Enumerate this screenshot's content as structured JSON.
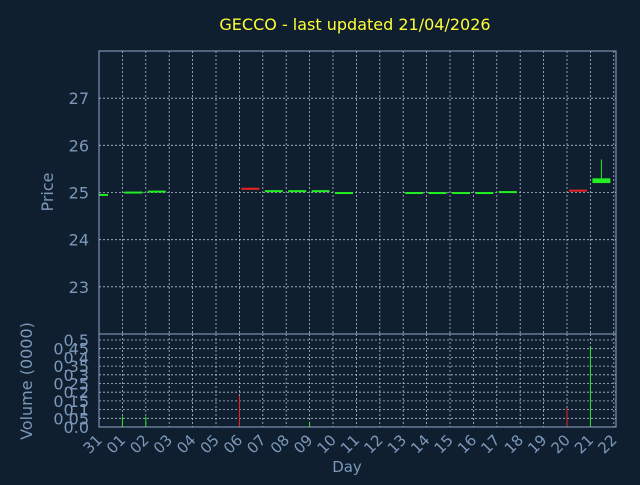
{
  "chart_data": [
    {
      "type": "candlestick",
      "panel": "price",
      "title": "GECCO - last updated 21/04/2026",
      "ylabel": "Price",
      "ylim": [
        22,
        28
      ],
      "yticks": [
        "23",
        "24",
        "25",
        "26",
        "27"
      ],
      "grid": true,
      "candles": [
        {
          "day": "31",
          "open": 24.97,
          "high": 24.97,
          "low": 24.97,
          "close": 24.97,
          "dir": "up"
        },
        {
          "day": "01",
          "open": 25.02,
          "high": 25.02,
          "low": 25.02,
          "close": 25.02,
          "dir": "up"
        },
        {
          "day": "02",
          "open": 25.02,
          "high": 25.04,
          "low": 25.02,
          "close": 25.04,
          "dir": "up"
        },
        {
          "day": "06",
          "open": 25.1,
          "high": 25.1,
          "low": 25.07,
          "close": 25.07,
          "dir": "down"
        },
        {
          "day": "07",
          "open": 25.04,
          "high": 25.05,
          "low": 25.04,
          "close": 25.05,
          "dir": "up"
        },
        {
          "day": "08",
          "open": 25.04,
          "high": 25.05,
          "low": 25.04,
          "close": 25.05,
          "dir": "up"
        },
        {
          "day": "09",
          "open": 25.04,
          "high": 25.05,
          "low": 25.04,
          "close": 25.05,
          "dir": "up"
        },
        {
          "day": "10",
          "open": 25.0,
          "high": 25.01,
          "low": 25.0,
          "close": 25.01,
          "dir": "up"
        },
        {
          "day": "13",
          "open": 25.0,
          "high": 25.01,
          "low": 25.0,
          "close": 25.01,
          "dir": "up"
        },
        {
          "day": "14",
          "open": 25.0,
          "high": 25.01,
          "low": 25.0,
          "close": 25.01,
          "dir": "up"
        },
        {
          "day": "15",
          "open": 25.0,
          "high": 25.01,
          "low": 25.0,
          "close": 25.01,
          "dir": "up"
        },
        {
          "day": "16",
          "open": 25.0,
          "high": 25.01,
          "low": 25.0,
          "close": 25.01,
          "dir": "up"
        },
        {
          "day": "17",
          "open": 25.01,
          "high": 25.03,
          "low": 25.01,
          "close": 25.03,
          "dir": "up"
        },
        {
          "day": "20",
          "open": 25.06,
          "high": 25.06,
          "low": 25.04,
          "close": 25.04,
          "dir": "down"
        },
        {
          "day": "21",
          "open": 25.2,
          "high": 25.7,
          "low": 25.2,
          "close": 25.3,
          "dir": "up"
        }
      ]
    },
    {
      "type": "bar",
      "panel": "volume",
      "ylabel": "Volume (0000)",
      "xlabel": "Day",
      "ylim": [
        0,
        0.5
      ],
      "yticks": [
        "0.0",
        "0.05",
        "0.1",
        "0.15",
        "0.2",
        "0.25",
        "0.3",
        "0.35",
        "0.4",
        "0.45",
        "0.5"
      ],
      "categories": [
        "31",
        "01",
        "02",
        "03",
        "04",
        "05",
        "06",
        "07",
        "08",
        "09",
        "10",
        "11",
        "12",
        "13",
        "14",
        "15",
        "16",
        "17",
        "18",
        "19",
        "20",
        "21",
        "22"
      ],
      "grid": true,
      "bars": [
        {
          "day": "01",
          "value": 0.06,
          "dir": "up"
        },
        {
          "day": "02",
          "value": 0.06,
          "dir": "up"
        },
        {
          "day": "06",
          "value": 0.18,
          "dir": "down"
        },
        {
          "day": "09",
          "value": 0.03,
          "dir": "up"
        },
        {
          "day": "20",
          "value": 0.11,
          "dir": "down"
        },
        {
          "day": "21",
          "value": 0.46,
          "dir": "up"
        }
      ]
    }
  ],
  "colors": {
    "background": "#0f1f30",
    "frame": "#8fa8c8",
    "grid": "#b0c0d0",
    "title": "#ffff33",
    "axis_label": "#7d98b8",
    "tick_label": "#7d98b8",
    "up": "#22ee22",
    "down": "#ee2222"
  }
}
